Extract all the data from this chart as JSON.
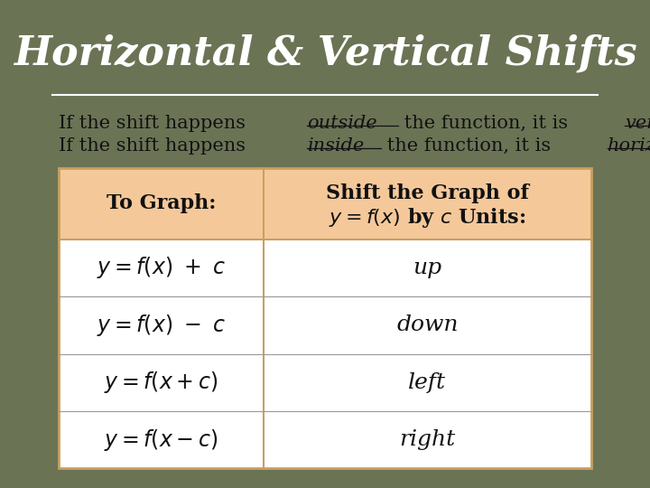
{
  "title": "Horizontal & Vertical Shifts",
  "subtitle_line1_parts": [
    {
      "text": "If the shift happens ",
      "style": "normal"
    },
    {
      "text": "outside",
      "style": "underline_italic"
    },
    {
      "text": " the function, it is ",
      "style": "normal"
    },
    {
      "text": "vertical.",
      "style": "underline_italic"
    }
  ],
  "subtitle_line2_parts": [
    {
      "text": "If the shift happens ",
      "style": "normal"
    },
    {
      "text": "inside",
      "style": "underline_italic"
    },
    {
      "text": " the function, it is ",
      "style": "normal"
    },
    {
      "text": "horizontal",
      "style": "underline_italic"
    },
    {
      "text": ".",
      "style": "normal"
    }
  ],
  "bg_color": "#6b7355",
  "table_bg_header": "#f5c89a",
  "table_bg_body": "#ffffff",
  "table_border_color": "#c8a060",
  "header_col1": "To Graph:",
  "header_col2_line1": "Shift the Graph of",
  "title_color": "#ffffff",
  "text_color": "#1a1a1a",
  "title_fontsize": 32,
  "subtitle_fontsize": 15,
  "table_fontsize": 15,
  "row_directions": [
    "up",
    "down",
    "left",
    "right"
  ]
}
